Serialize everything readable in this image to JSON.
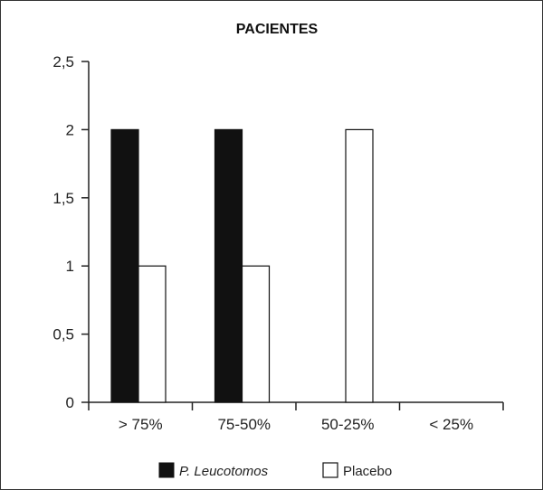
{
  "chart_data": {
    "type": "bar",
    "title": "PACIENTES",
    "categories": [
      "> 75%",
      "75-50%",
      "50-25%",
      "< 25%"
    ],
    "series": [
      {
        "name": "P. Leucotomos",
        "color": "#111111",
        "values": [
          2,
          2,
          0,
          0
        ]
      },
      {
        "name": "Placebo",
        "color": "#ffffff",
        "values": [
          1,
          1,
          2,
          0
        ]
      }
    ],
    "yticks": [
      "0",
      "0,5",
      "1",
      "1,5",
      "2",
      "2,5"
    ],
    "ylim": [
      0,
      2.5
    ],
    "grid": false,
    "legend_position": "bottom"
  }
}
